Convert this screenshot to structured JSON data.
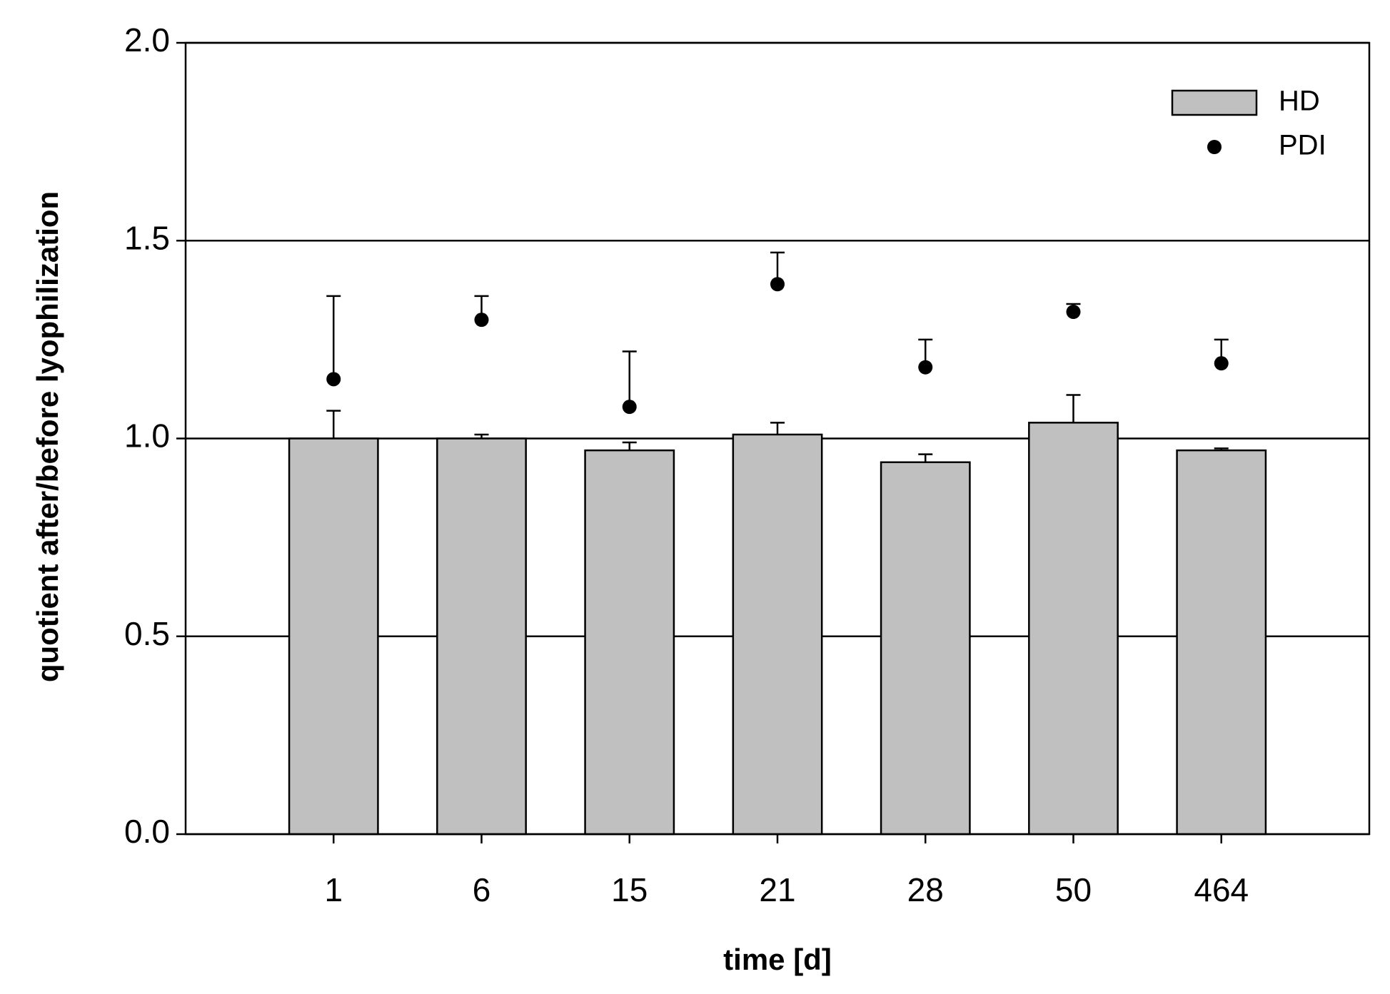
{
  "chart_data": {
    "type": "bar",
    "x_label": "time [d]",
    "y_label": "quotient after/before lyophilization",
    "categories": [
      "1",
      "6",
      "15",
      "21",
      "28",
      "50",
      "464"
    ],
    "series": [
      {
        "name": "HD",
        "type": "bar",
        "color": "#c0c0c0",
        "values": [
          1.0,
          1.0,
          0.97,
          1.01,
          0.94,
          1.04,
          0.97
        ],
        "errors": [
          0.07,
          0.01,
          0.02,
          0.03,
          0.02,
          0.07,
          0.005
        ]
      },
      {
        "name": "PDI",
        "type": "scatter",
        "color": "#000000",
        "values": [
          1.15,
          1.3,
          1.08,
          1.39,
          1.18,
          1.32,
          1.19
        ],
        "errors": [
          0.21,
          0.06,
          0.14,
          0.08,
          0.07,
          0.02,
          0.06
        ]
      }
    ],
    "ylim": [
      0,
      2
    ],
    "yticks": [
      {
        "value": 0,
        "label": "0.0"
      },
      0.5,
      {
        "value": 1,
        "label": "1.0"
      },
      1.5,
      {
        "value": 2,
        "label": "2.0"
      }
    ],
    "grid": true,
    "legend": "upper right"
  }
}
